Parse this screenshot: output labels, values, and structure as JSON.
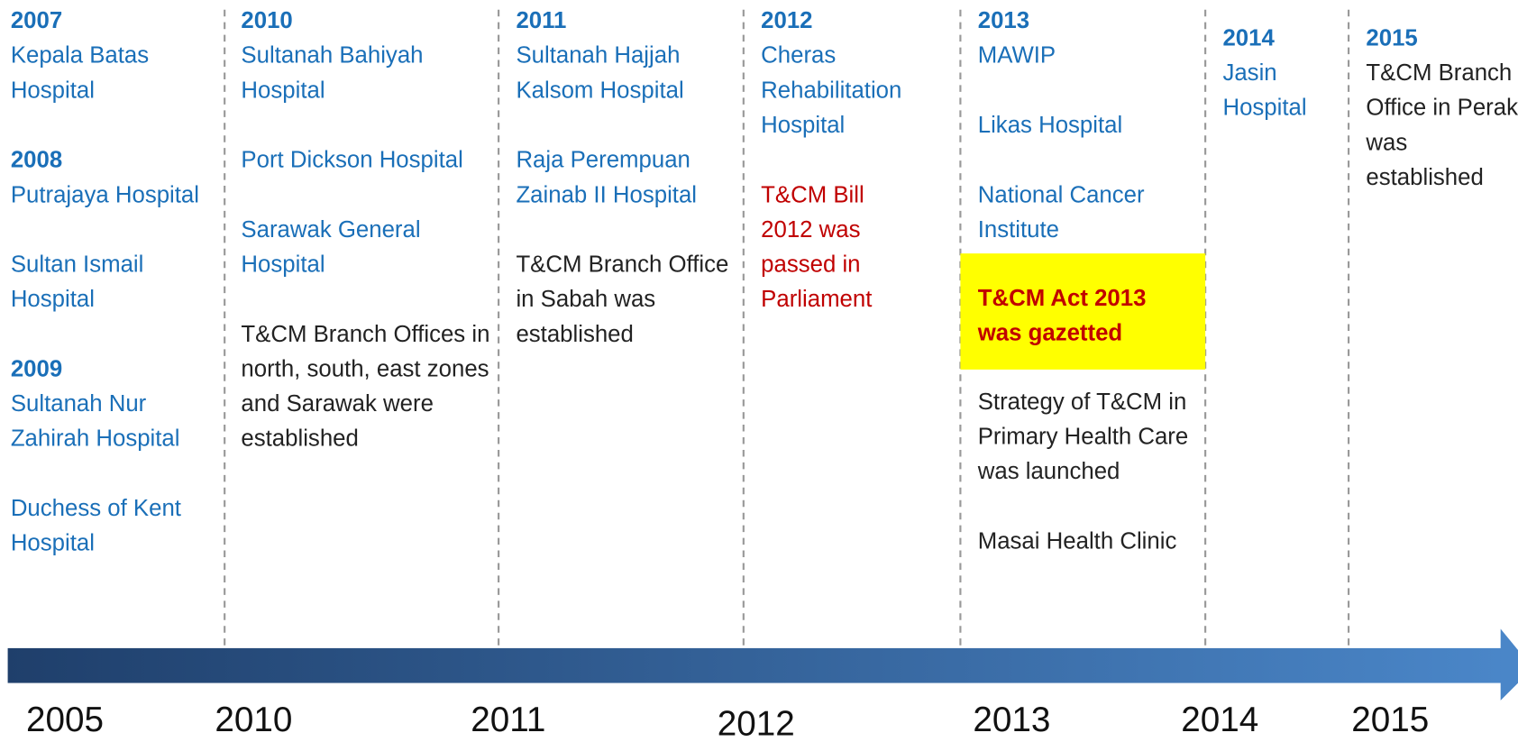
{
  "columns": [
    {
      "entries": [
        {
          "year": "2007",
          "hospitals": [
            "Kepala Batas Hospital"
          ]
        },
        {
          "year": "2008",
          "hospitals": [
            "Putrajaya Hospital",
            "Sultan Ismail Hospital"
          ]
        },
        {
          "year": "2009",
          "hospitals": [
            "Sultanah Nur Zahirah Hospital",
            "Duchess of Kent Hospital"
          ]
        }
      ]
    },
    {
      "entries": [
        {
          "year": "2010",
          "hospitals": [
            "Sultanah Bahiyah Hospital",
            "Port Dickson Hospital",
            "Sarawak General Hospital"
          ],
          "events": [
            "T&CM Branch Offices in north, south, east zones and Sarawak were established"
          ]
        }
      ]
    },
    {
      "entries": [
        {
          "year": "2011",
          "hospitals": [
            "Sultanah Hajjah Kalsom Hospital",
            "Raja Perempuan Zainab II Hospital"
          ],
          "events": [
            "T&CM Branch Office in Sabah was established"
          ]
        }
      ]
    },
    {
      "entries": [
        {
          "year": "2012",
          "hospitals": [
            "Cheras Rehabilitation Hospital"
          ],
          "bill": [
            "T&CM Bill 2012 was passed in Parliament"
          ]
        }
      ]
    },
    {
      "entries": [
        {
          "year": "2013",
          "hospitals": [
            "MAWIP",
            "Likas Hospital",
            "National Cancer Institute"
          ],
          "highlight": [
            "T&CM Act 2013 was gazetted"
          ],
          "events": [
            "Strategy of T&CM in Primary Health Care was launched",
            "Masai Health Clinic"
          ]
        }
      ]
    },
    {
      "entries": [
        {
          "year": "2014",
          "hospitals": [
            "Jasin Hospital"
          ]
        }
      ]
    },
    {
      "entries": [
        {
          "year": "2015",
          "events": [
            "T&CM Branch Office in Perak was established"
          ]
        }
      ]
    }
  ],
  "axis": {
    "labels": [
      "2005",
      "2010",
      "2011",
      "2012",
      "2013",
      "2014",
      "2015"
    ]
  }
}
